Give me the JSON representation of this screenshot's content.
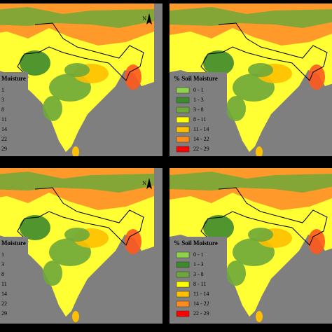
{
  "panels": [
    {
      "north": "N",
      "legend": {
        "title": "Moisture",
        "items": [
          "1",
          "3",
          "8",
          "11",
          "14",
          "22",
          "29"
        ]
      }
    },
    {
      "legend": {
        "title": "% Soil Moisture",
        "items": [
          {
            "label": "0 - 1",
            "color": "#8ed34a"
          },
          {
            "label": "1 - 3",
            "color": "#3d8a2c"
          },
          {
            "label": "3 - 8",
            "color": "#6ea83a"
          },
          {
            "label": "8 - 11",
            "color": "#ffff00"
          },
          {
            "label": "11 - 14",
            "color": "#ffc000"
          },
          {
            "label": "14 - 22",
            "color": "#ff8a1e"
          },
          {
            "label": "22 - 29",
            "color": "#ff0000"
          }
        ]
      }
    },
    {
      "north": "N",
      "legend": {
        "title": "Moisture",
        "items": [
          "1",
          "3",
          "8",
          "11",
          "14",
          "22",
          "29"
        ]
      }
    },
    {
      "legend": {
        "title": "% Soil Moisture",
        "items": [
          {
            "label": "0 - 1",
            "color": "#8ed34a"
          },
          {
            "label": "1 - 3",
            "color": "#3d8a2c"
          },
          {
            "label": "3 - 8",
            "color": "#6ea83a"
          },
          {
            "label": "8 - 11",
            "color": "#ffff00"
          },
          {
            "label": "11 - 14",
            "color": "#ffc000"
          },
          {
            "label": "14 - 22",
            "color": "#ff8a1e"
          },
          {
            "label": "22 - 29",
            "color": "#ff0000"
          }
        ]
      }
    }
  ]
}
